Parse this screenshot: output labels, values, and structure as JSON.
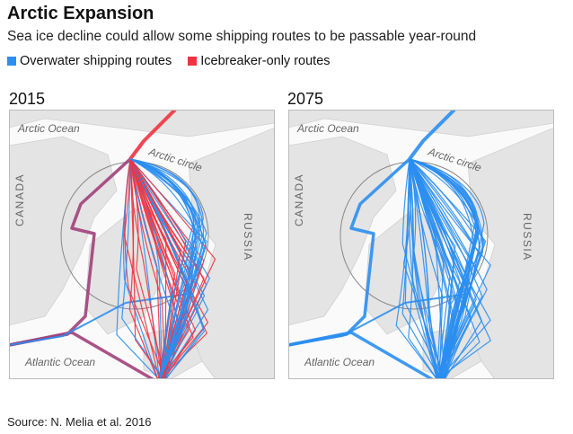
{
  "header": {
    "title": "Arctic Expansion",
    "subtitle": "Sea ice decline could allow some shipping routes to be passable year-round"
  },
  "legend": {
    "items": [
      {
        "label": "Overwater shipping routes",
        "color": "#2b8ef0"
      },
      {
        "label": "Icebreaker-only routes",
        "color": "#ef3340"
      }
    ]
  },
  "panels": [
    {
      "year": "2015",
      "labels": {
        "ocean_top": "Arctic Ocean",
        "circle": "Arctic circle",
        "west": "CANADA",
        "east": "RUSSIA",
        "ocean_bottom": "Atlantic Ocean"
      }
    },
    {
      "year": "2075",
      "labels": {
        "ocean_top": "Arctic Ocean",
        "circle": "Arctic circle",
        "west": "CANADA",
        "east": "RUSSIA",
        "ocean_bottom": "Atlantic Ocean"
      }
    }
  ],
  "source": "Source: N. Melia et al. 2016"
}
